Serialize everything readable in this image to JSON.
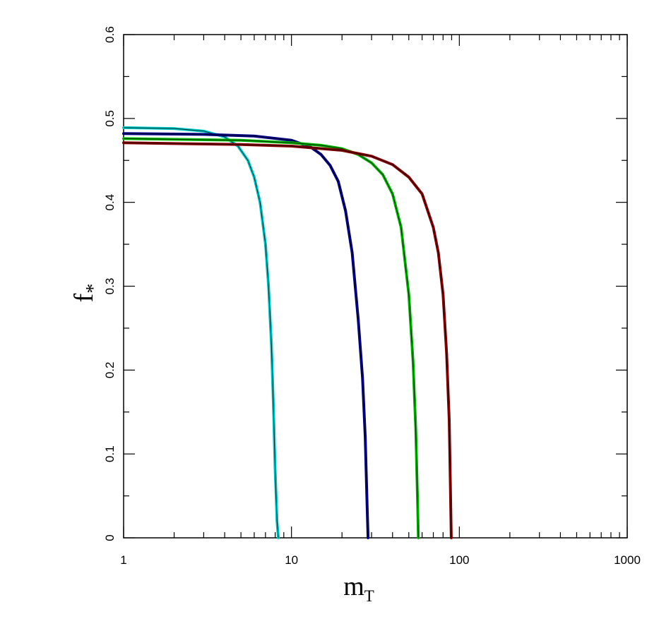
{
  "chart_data": {
    "type": "line",
    "title": "",
    "xlabel": "m",
    "xlabel_sub": "T",
    "ylabel": "f",
    "ylabel_sub": "*",
    "x_scale": "log",
    "xlim": [
      1,
      1000
    ],
    "ylim": [
      0,
      0.6
    ],
    "xticks": [
      1,
      10,
      100,
      1000
    ],
    "xtick_labels": [
      "1",
      "10",
      "100",
      "1000"
    ],
    "yticks": [
      0,
      0.1,
      0.2,
      0.3,
      0.4,
      0.5,
      0.6
    ],
    "ytick_labels": [
      "0",
      "0.1",
      "0.2",
      "0.3",
      "0.4",
      "0.5",
      "0.6"
    ],
    "grid": false,
    "legend": "none",
    "series": [
      {
        "color": "#00cccc",
        "x": [
          1,
          2,
          3,
          4,
          4.8,
          5.5,
          6,
          6.5,
          7,
          7.3,
          7.6,
          7.8,
          8.0,
          8.2,
          8.35
        ],
        "y": [
          0.489,
          0.488,
          0.485,
          0.478,
          0.467,
          0.45,
          0.43,
          0.4,
          0.35,
          0.3,
          0.23,
          0.16,
          0.08,
          0.02,
          0
        ]
      },
      {
        "color": "#00008b",
        "x": [
          1,
          3,
          6,
          10,
          13,
          15,
          17,
          19,
          21,
          23,
          25,
          26.5,
          27.5,
          28.2,
          28.6
        ],
        "y": [
          0.482,
          0.481,
          0.479,
          0.474,
          0.466,
          0.457,
          0.444,
          0.425,
          0.39,
          0.34,
          0.26,
          0.19,
          0.12,
          0.04,
          0
        ]
      },
      {
        "color": "#00bb00",
        "x": [
          1,
          5,
          10,
          15,
          20,
          25,
          30,
          35,
          40,
          45,
          50,
          53,
          55,
          56.3,
          57
        ],
        "y": [
          0.476,
          0.474,
          0.471,
          0.468,
          0.464,
          0.457,
          0.447,
          0.433,
          0.41,
          0.37,
          0.29,
          0.21,
          0.13,
          0.05,
          0
        ]
      },
      {
        "color": "#8b0000",
        "x": [
          1,
          5,
          10,
          20,
          30,
          40,
          50,
          60,
          70,
          75,
          80,
          84,
          87,
          88.5,
          89.5
        ],
        "y": [
          0.471,
          0.469,
          0.467,
          0.462,
          0.455,
          0.445,
          0.43,
          0.41,
          0.37,
          0.34,
          0.29,
          0.22,
          0.14,
          0.06,
          0
        ]
      }
    ]
  }
}
